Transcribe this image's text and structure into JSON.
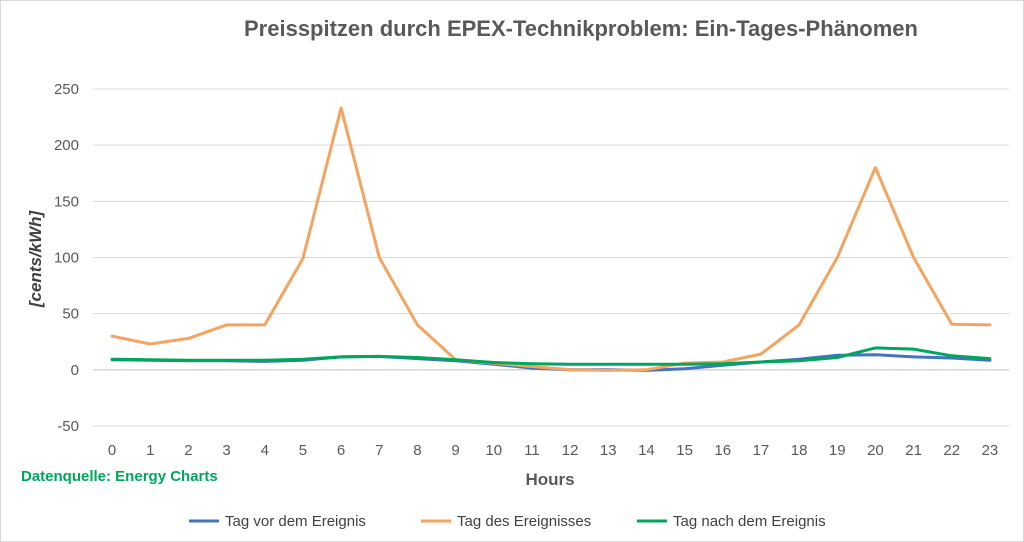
{
  "chart_data": {
    "type": "line",
    "title": "Preisspitzen durch EPEX-Technikproblem: Ein-Tages-Phänomen",
    "xlabel": "Hours",
    "ylabel": "[cents/kWh]",
    "categories": [
      0,
      1,
      2,
      3,
      4,
      5,
      6,
      7,
      8,
      9,
      10,
      11,
      12,
      13,
      14,
      15,
      16,
      17,
      18,
      19,
      20,
      21,
      22,
      23
    ],
    "ylim": [
      -50,
      250
    ],
    "yticks": [
      -50,
      0,
      50,
      100,
      150,
      200,
      250
    ],
    "grid": true,
    "legend_position": "bottom",
    "series": [
      {
        "name": "Tag vor dem Ereignis",
        "color": "#4472c4",
        "values": [
          9,
          8.5,
          8,
          8,
          7.5,
          8.5,
          11.5,
          12,
          10,
          8,
          5,
          1.5,
          0,
          0,
          -0.5,
          1,
          4,
          7,
          9.5,
          13,
          13.5,
          11.5,
          10.5,
          8.5
        ]
      },
      {
        "name": "Tag des Ereignisses",
        "color": "#f4a460",
        "values": [
          30,
          23,
          28,
          40,
          40,
          99,
          233,
          100,
          40,
          9,
          6,
          3,
          0,
          -0.5,
          0,
          6,
          7,
          14,
          40,
          100,
          180,
          100,
          40.5,
          40
        ]
      },
      {
        "name": "Tag nach dem Ereignis",
        "color": "#00a65a",
        "values": [
          9.5,
          9,
          8.5,
          8.5,
          8.5,
          9.5,
          11.5,
          12,
          11,
          9,
          6.5,
          5.5,
          5,
          5,
          5,
          5,
          5.5,
          7,
          8,
          11,
          19.5,
          18.5,
          12.5,
          10
        ]
      }
    ]
  },
  "source_text": "Datenquelle: Energy Charts",
  "source_color": "#00a65a"
}
